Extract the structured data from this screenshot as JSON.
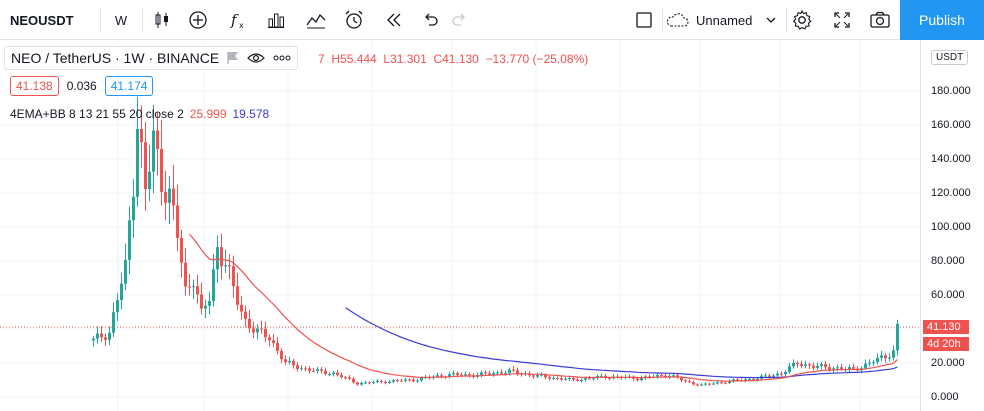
{
  "toolbar": {
    "symbol": "NEOUSDT",
    "interval": "W",
    "layout_name": "Unnamed",
    "publish_label": "Publish",
    "icons": [
      "candles-icon",
      "add-indicator-icon",
      "fx-icon",
      "bar-chart-icon",
      "compare-icon",
      "alarm-icon",
      "replay-icon",
      "undo-icon",
      "redo-icon",
      "fullscreen-icon",
      "cloud-icon",
      "chevron-down-icon",
      "gear-icon",
      "expand-icon",
      "camera-icon"
    ]
  },
  "legend": {
    "title": "NEO / TetherUS · 1W · BINANCE",
    "open_tail": "7",
    "high": "H55.444",
    "low": "L31.301",
    "close": "C41.130",
    "change": "−13.770 (−25.08%)",
    "bid": "41.138",
    "spread": "0.036",
    "ask": "41.174",
    "indicator_name": "4EMA+BB 8 13 21 55 20 close 2",
    "indicator_val1": "25.999",
    "indicator_val2": "19.578"
  },
  "price_axis": {
    "currency": "USDT",
    "ticks": [
      "180.000",
      "160.000",
      "140.000",
      "120.000",
      "100.000",
      "80.000",
      "60.000",
      "40.000",
      "20.000",
      "0.000"
    ],
    "last_price": "41.130",
    "countdown": "4d 20h"
  },
  "colors": {
    "up": "#26a69a",
    "down": "#ef5350",
    "ema": "#ef5350",
    "bb": "#3b3bd6",
    "accent": "#2196f3"
  }
}
